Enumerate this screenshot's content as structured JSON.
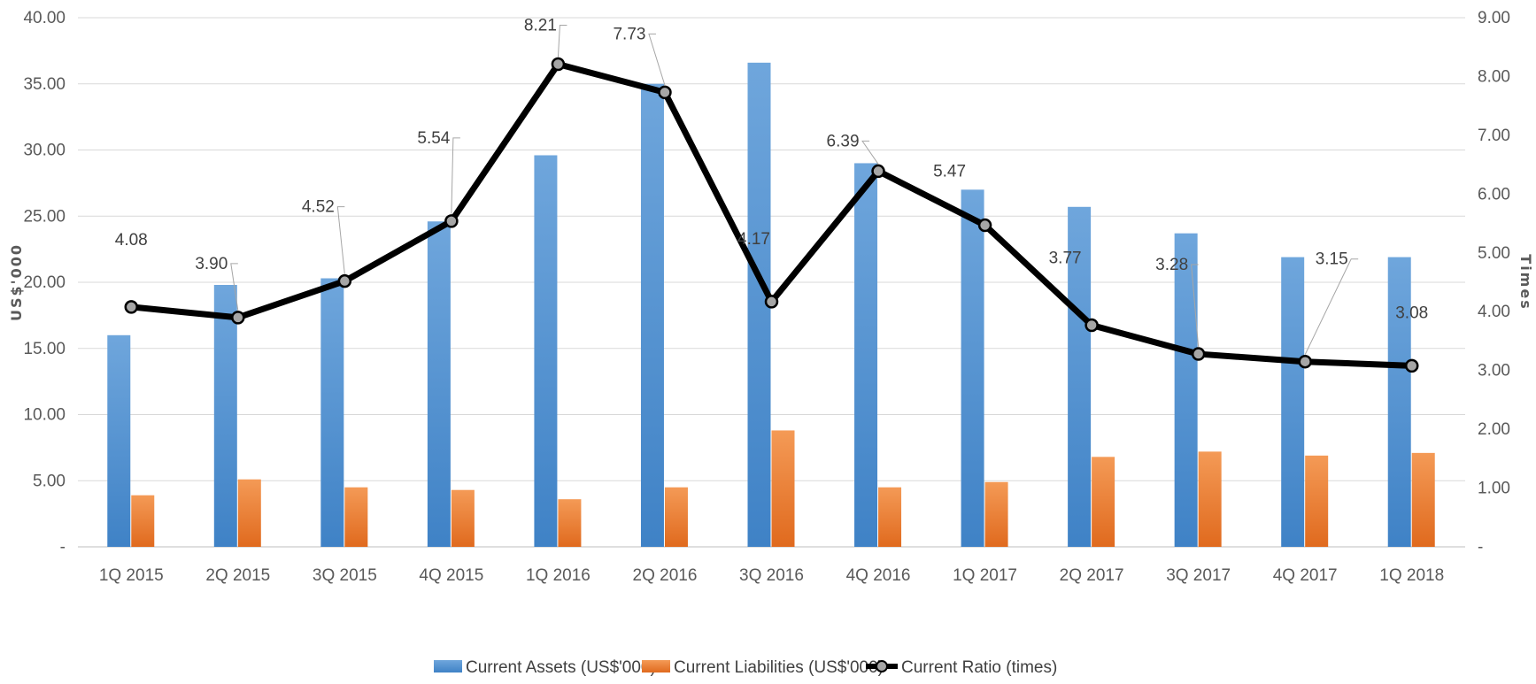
{
  "chart_data": {
    "type": "bar",
    "categories": [
      "1Q 2015",
      "2Q 2015",
      "3Q 2015",
      "4Q 2015",
      "1Q 2016",
      "2Q 2016",
      "3Q 2016",
      "4Q 2016",
      "1Q 2017",
      "2Q 2017",
      "3Q 2017",
      "4Q 2017",
      "1Q 2018"
    ],
    "series": [
      {
        "name": "Current Assets (US$'000)",
        "type": "bar",
        "axis": "left",
        "color": "#5B9BD5",
        "values": [
          16.0,
          19.8,
          20.3,
          24.6,
          29.6,
          35.0,
          36.6,
          29.0,
          27.0,
          25.7,
          23.7,
          21.9,
          21.9
        ]
      },
      {
        "name": "Current Liabilities (US$'000)",
        "type": "bar",
        "axis": "left",
        "color": "#ED7D31",
        "values": [
          3.9,
          5.1,
          4.5,
          4.3,
          3.6,
          4.5,
          8.8,
          4.5,
          4.9,
          6.8,
          7.2,
          6.9,
          7.1
        ]
      },
      {
        "name": "Current Ratio (times)",
        "type": "line",
        "axis": "right",
        "color": "#000000",
        "values": [
          4.08,
          3.9,
          4.52,
          5.54,
          8.21,
          7.73,
          4.17,
          6.39,
          5.47,
          3.77,
          3.28,
          3.15,
          3.08
        ]
      }
    ],
    "data_labels": [
      "4.08",
      "3.90",
      "4.52",
      "5.54",
      "8.21",
      "7.73",
      "4.17",
      "6.39",
      "5.47",
      "3.77",
      "3.28",
      "3.15",
      "3.08"
    ],
    "ylabel": "US$'000",
    "ylabel_right": "Times",
    "ylim": [
      0,
      40
    ],
    "ylim_right": [
      0,
      9
    ],
    "yticks_left": [
      "-",
      "5.00",
      "10.00",
      "15.00",
      "20.00",
      "25.00",
      "30.00",
      "35.00",
      "40.00"
    ],
    "yticks_right": [
      "-",
      "1.00",
      "2.00",
      "3.00",
      "4.00",
      "5.00",
      "6.00",
      "7.00",
      "8.00",
      "9.00"
    ],
    "grid": true,
    "legend_position": "bottom"
  }
}
